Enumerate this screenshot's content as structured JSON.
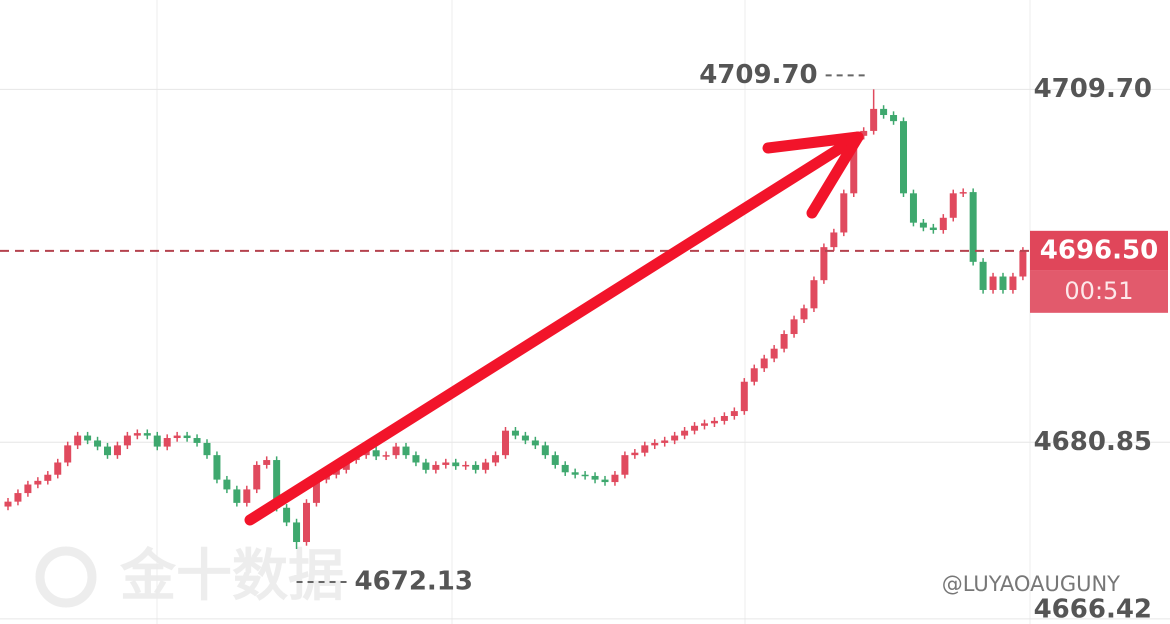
{
  "chart_data": {
    "type": "candlestick",
    "up_color": "#e04a5e",
    "down_color": "#3ea86e",
    "ylim": [
      4666.0,
      4717.0
    ],
    "yticks": [
      {
        "value": 4709.7,
        "label": "4709.70"
      },
      {
        "value": 4680.85,
        "label": "4680.85"
      },
      {
        "value": 4666.42,
        "label": "4666.42"
      }
    ],
    "grid": true,
    "open": [
      4675.6,
      4676.0,
      4676.7,
      4677.4,
      4677.7,
      4678.2,
      4679.2,
      4680.6,
      4681.4,
      4681.0,
      4680.5,
      4679.8,
      4680.6,
      4681.4,
      4681.6,
      4681.4,
      4680.5,
      4681.2,
      4681.4,
      4681.2,
      4680.8,
      4679.8,
      4677.8,
      4677.0,
      4675.9,
      4677.0,
      4679.0,
      4679.4,
      4675.5,
      4674.3,
      4672.7,
      4675.9,
      4677.8,
      4678.2,
      4678.6,
      4679.4,
      4679.8,
      4680.2,
      4679.7,
      4679.8,
      4680.5,
      4679.8,
      4679.2,
      4678.6,
      4679.0,
      4679.2,
      4678.9,
      4679.0,
      4678.6,
      4679.2,
      4679.8,
      4681.8,
      4681.4,
      4681.0,
      4680.6,
      4679.8,
      4679.0,
      4678.4,
      4678.2,
      4678.1,
      4677.8,
      4677.6,
      4678.2,
      4679.8,
      4680.0,
      4680.6,
      4680.8,
      4681.0,
      4681.4,
      4681.8,
      4682.2,
      4682.4,
      4682.6,
      4683.0,
      4683.4,
      4685.8,
      4686.9,
      4687.7,
      4688.5,
      4689.7,
      4690.9,
      4691.8,
      4694.1,
      4696.8,
      4698.0,
      4701.2,
      4705.9,
      4706.3,
      4708.1,
      4707.6,
      4707.1,
      4701.2,
      4698.8,
      4698.4,
      4698.2,
      4699.2,
      4701.2,
      4701.3,
      4695.6,
      4693.3,
      4694.4,
      4693.3,
      4694.4
    ],
    "high": [
      4676.3,
      4677.0,
      4677.7,
      4678.0,
      4678.5,
      4679.5,
      4680.9,
      4681.7,
      4681.7,
      4681.3,
      4680.8,
      4680.9,
      4681.7,
      4681.9,
      4681.9,
      4681.7,
      4681.5,
      4681.7,
      4681.7,
      4681.5,
      4681.1,
      4680.1,
      4678.1,
      4677.3,
      4677.3,
      4679.3,
      4679.7,
      4679.7,
      4675.8,
      4674.6,
      4676.2,
      4678.1,
      4678.5,
      4678.9,
      4679.7,
      4680.1,
      4680.5,
      4680.5,
      4680.1,
      4680.8,
      4680.8,
      4680.1,
      4679.5,
      4679.3,
      4679.5,
      4679.5,
      4679.3,
      4679.3,
      4679.5,
      4680.1,
      4682.1,
      4682.1,
      4681.7,
      4681.3,
      4680.9,
      4680.1,
      4679.3,
      4678.7,
      4678.5,
      4678.4,
      4678.1,
      4678.5,
      4680.1,
      4680.3,
      4680.9,
      4681.1,
      4681.3,
      4681.7,
      4682.1,
      4682.5,
      4682.7,
      4682.9,
      4683.3,
      4683.7,
      4686.1,
      4687.2,
      4688.0,
      4688.8,
      4690.0,
      4691.2,
      4692.1,
      4694.4,
      4697.1,
      4698.3,
      4701.5,
      4706.2,
      4706.6,
      4709.7,
      4708.4,
      4707.9,
      4707.4,
      4701.5,
      4699.1,
      4698.7,
      4699.5,
      4701.5,
      4701.6,
      4701.6,
      4695.9,
      4694.7,
      4694.7,
      4694.7,
      4696.8
    ],
    "low": [
      4675.3,
      4675.7,
      4676.4,
      4677.1,
      4677.4,
      4677.9,
      4678.9,
      4680.3,
      4680.7,
      4680.2,
      4679.5,
      4679.5,
      4680.3,
      4681.1,
      4681.1,
      4680.2,
      4680.2,
      4680.9,
      4680.9,
      4680.5,
      4679.5,
      4677.5,
      4676.7,
      4675.6,
      4675.6,
      4676.7,
      4678.7,
      4675.2,
      4674.0,
      4672.13,
      4672.4,
      4675.6,
      4677.5,
      4677.9,
      4678.3,
      4679.1,
      4679.5,
      4679.4,
      4679.4,
      4679.5,
      4679.5,
      4678.9,
      4678.3,
      4678.3,
      4678.7,
      4678.6,
      4678.6,
      4678.3,
      4678.3,
      4678.9,
      4679.5,
      4681.1,
      4680.7,
      4680.3,
      4679.5,
      4678.7,
      4678.1,
      4677.9,
      4677.8,
      4677.5,
      4677.3,
      4677.3,
      4677.9,
      4679.5,
      4679.7,
      4680.3,
      4680.5,
      4680.7,
      4681.1,
      4681.5,
      4681.9,
      4682.1,
      4682.3,
      4682.7,
      4683.1,
      4685.5,
      4686.6,
      4687.4,
      4688.2,
      4689.4,
      4690.6,
      4691.5,
      4693.8,
      4696.5,
      4697.7,
      4700.9,
      4705.6,
      4706.0,
      4707.3,
      4706.8,
      4700.9,
      4698.5,
      4698.1,
      4697.9,
      4697.9,
      4698.9,
      4700.9,
      4695.3,
      4693.0,
      4693.0,
      4693.0,
      4693.0,
      4694.1
    ],
    "close": [
      4676.0,
      4676.7,
      4677.4,
      4677.7,
      4678.2,
      4679.2,
      4680.6,
      4681.4,
      4681.0,
      4680.5,
      4679.8,
      4680.6,
      4681.4,
      4681.6,
      4681.4,
      4680.5,
      4681.2,
      4681.4,
      4681.2,
      4680.8,
      4679.8,
      4677.8,
      4677.0,
      4675.9,
      4677.0,
      4679.0,
      4679.4,
      4675.5,
      4674.3,
      4672.7,
      4675.9,
      4677.8,
      4678.2,
      4678.6,
      4679.4,
      4679.8,
      4680.2,
      4679.7,
      4679.8,
      4680.5,
      4679.8,
      4679.2,
      4678.6,
      4679.0,
      4679.2,
      4678.9,
      4679.0,
      4678.6,
      4679.2,
      4679.8,
      4681.8,
      4681.4,
      4681.0,
      4680.6,
      4679.8,
      4679.0,
      4678.4,
      4678.2,
      4678.1,
      4677.8,
      4677.6,
      4678.2,
      4679.8,
      4680.0,
      4680.6,
      4680.8,
      4681.0,
      4681.4,
      4681.8,
      4682.2,
      4682.4,
      4682.6,
      4683.0,
      4683.4,
      4685.8,
      4686.9,
      4687.7,
      4688.5,
      4689.7,
      4690.9,
      4691.8,
      4694.1,
      4696.8,
      4698.0,
      4701.2,
      4705.9,
      4706.3,
      4708.1,
      4707.6,
      4707.1,
      4701.2,
      4698.8,
      4698.4,
      4698.2,
      4699.2,
      4701.2,
      4701.3,
      4695.6,
      4693.3,
      4694.4,
      4693.3,
      4694.4,
      4696.5
    ],
    "last_price": {
      "value": 4696.5,
      "label": "4696.50"
    },
    "countdown": "00:51",
    "high_marker": {
      "index": 87,
      "value": 4709.7,
      "label": "4709.70"
    },
    "low_marker": {
      "index": 29,
      "value": 4672.13,
      "label": "4672.13"
    },
    "watermark": "金十数据",
    "credit": "@LUYAOAUGUNY"
  }
}
